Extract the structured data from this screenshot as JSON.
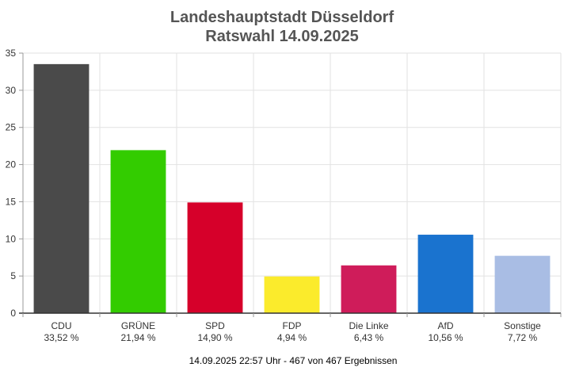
{
  "chart_data": {
    "type": "bar",
    "title": "Landeshauptstadt Düsseldorf",
    "subtitle": "Ratswahl 14.09.2025",
    "categories": [
      "CDU",
      "GRÜNE",
      "SPD",
      "FDP",
      "Die Linke",
      "AfD",
      "Sonstige"
    ],
    "values": [
      33.52,
      21.94,
      14.9,
      4.94,
      6.43,
      10.56,
      7.72
    ],
    "value_labels": [
      "33,52 %",
      "21,94 %",
      "14,90 %",
      "4,94 %",
      "6,43 %",
      "10,56 %",
      "7,72 %"
    ],
    "colors": [
      "#4a4a4a",
      "#33cc00",
      "#d6002a",
      "#fbeb2c",
      "#cf1c5a",
      "#1a73cf",
      "#a9bde4"
    ],
    "yticks": [
      0,
      5,
      10,
      15,
      20,
      25,
      30,
      35
    ],
    "ylim": [
      0,
      35
    ],
    "grid": true,
    "footer": "14.09.2025 22:57 Uhr - 467 von 467 Ergebnissen"
  }
}
